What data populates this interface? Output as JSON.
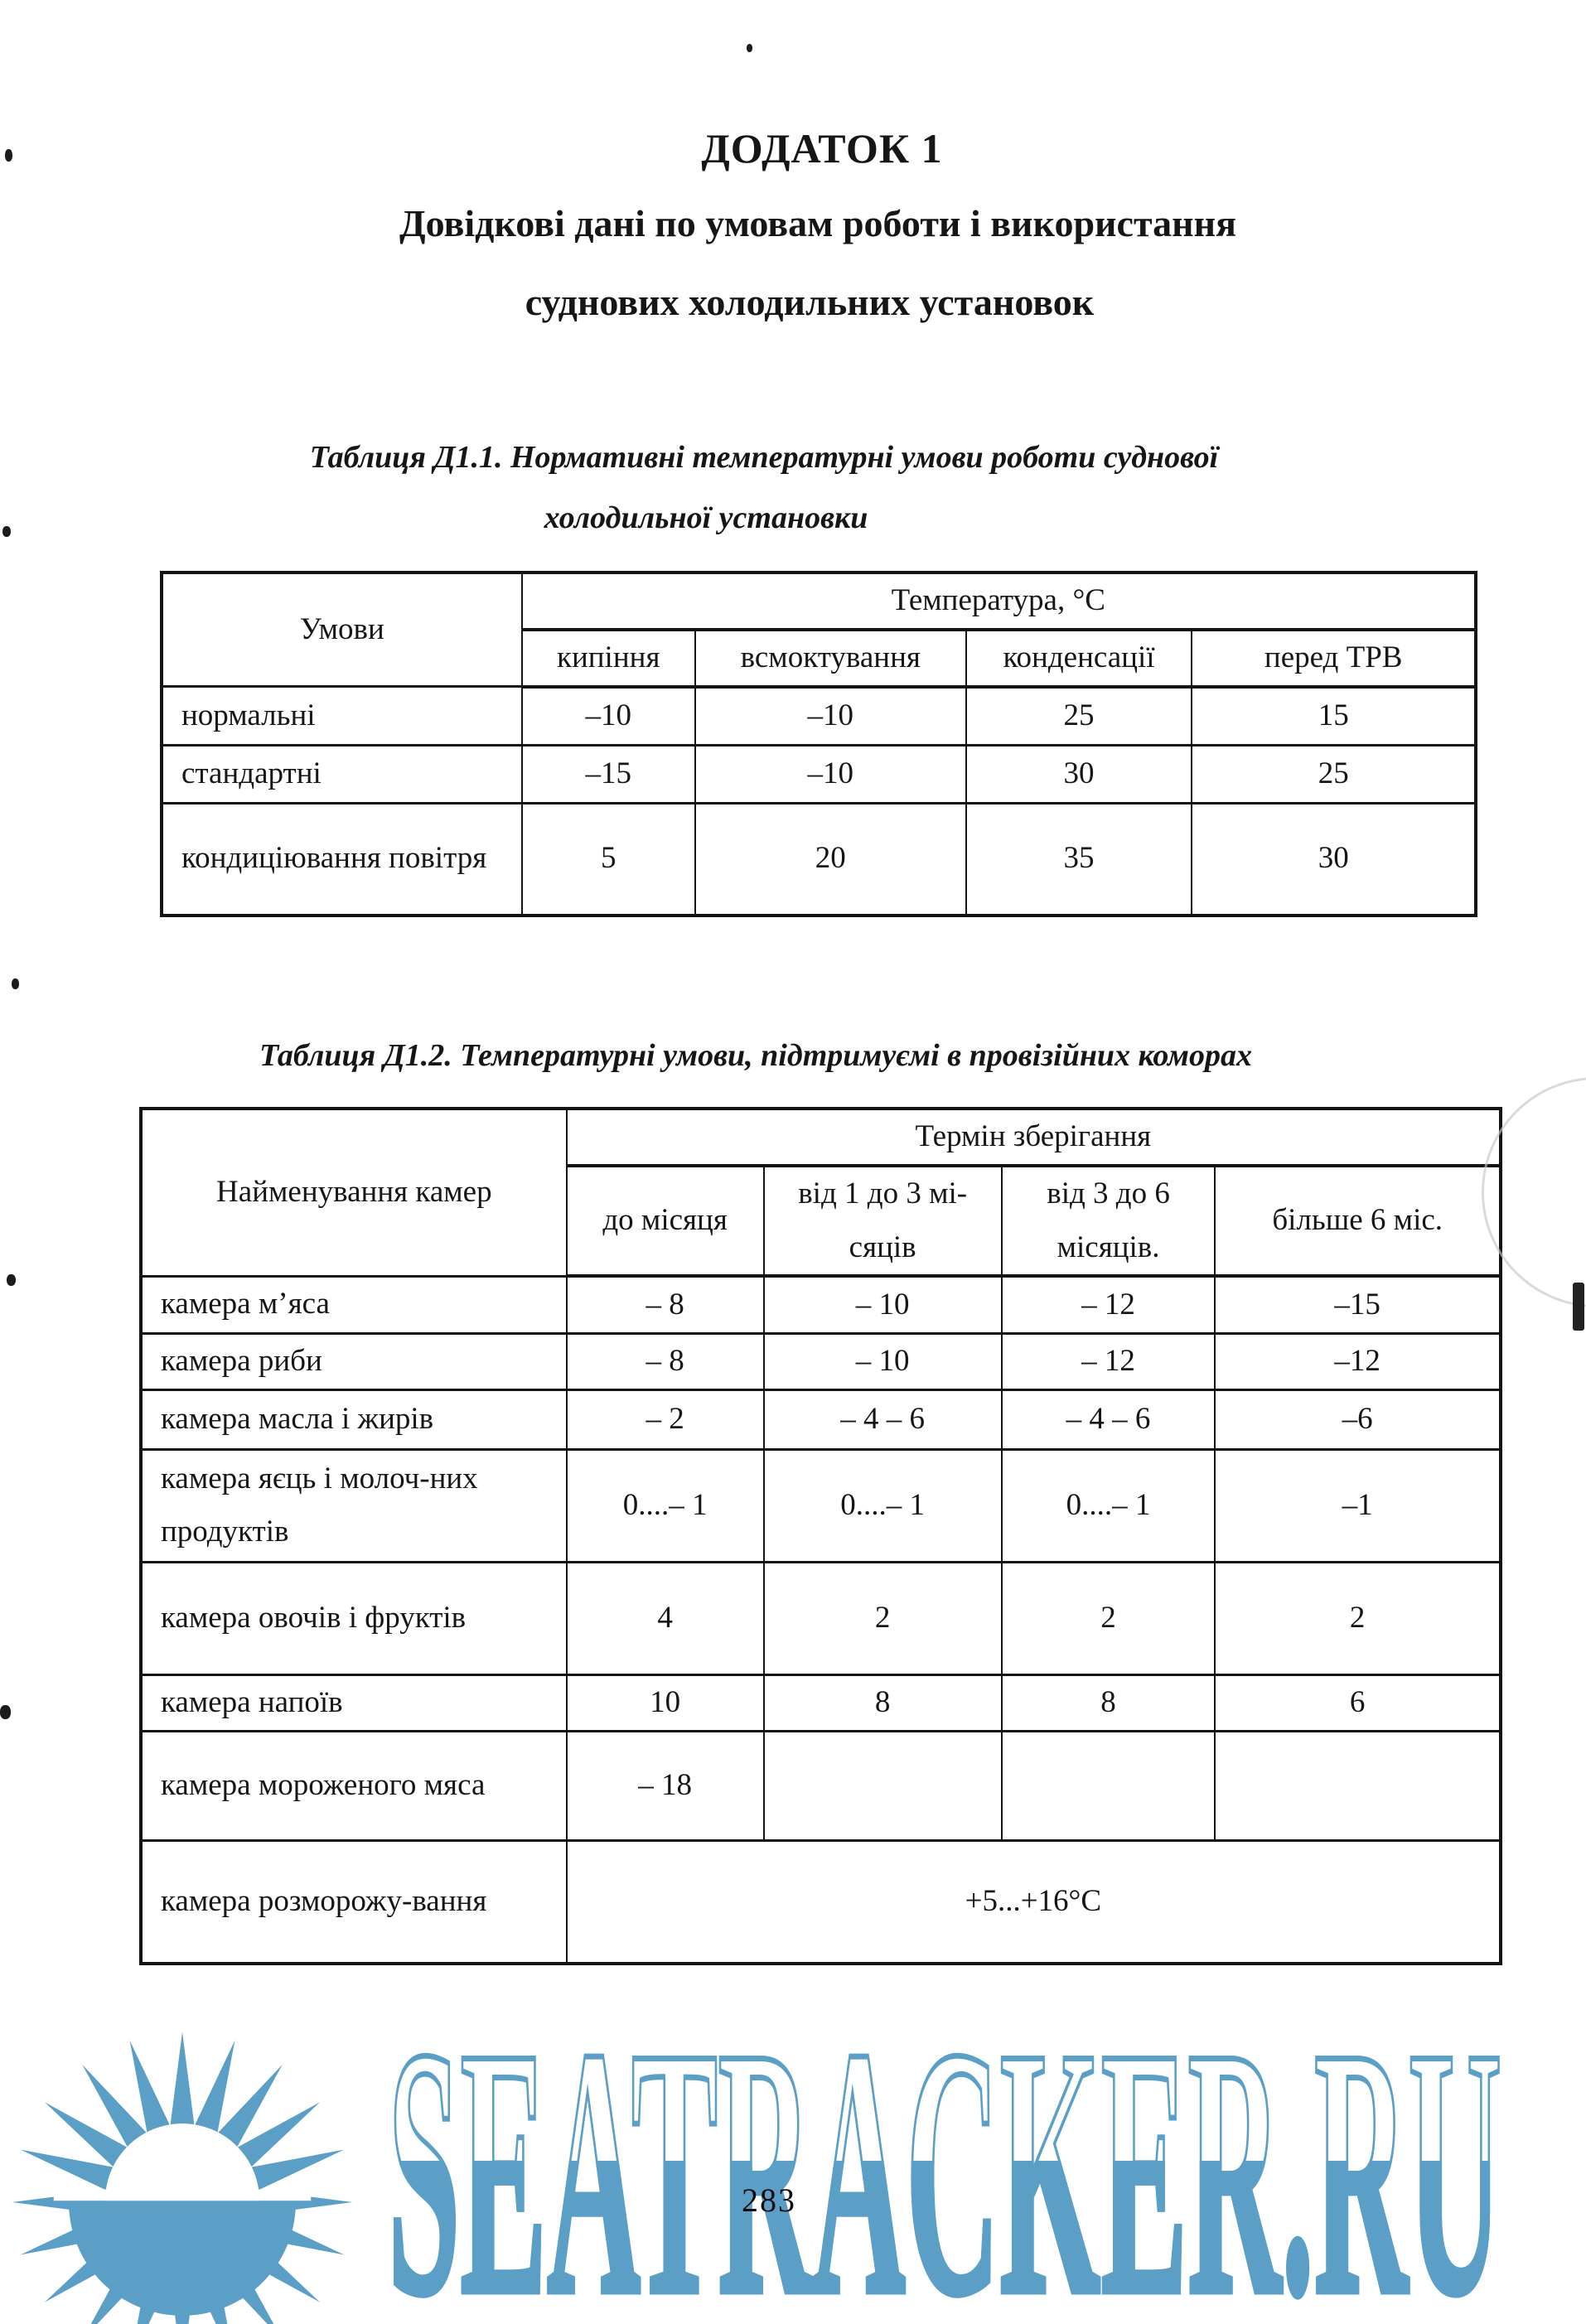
{
  "page": {
    "appendix_title": "ДОДАТОК 1",
    "subtitle_line1": "Довідкові дані по умовам роботи і використання",
    "subtitle_line2": "суднових холодильних установок",
    "page_number": "283"
  },
  "table1": {
    "caption_line1": "Таблиця Д1.1. Нормативні температурні умови роботи суднової",
    "caption_line2": "холодильної установки",
    "header": {
      "conditions": "Умови",
      "temperature_group": "Температура, °С",
      "subcolumns": [
        "кипіння",
        "всмоктування",
        "конденсації",
        "перед ТРВ"
      ]
    },
    "rows": [
      {
        "label": "нормальні",
        "boiling": "–10",
        "suction": "–10",
        "condensation": "25",
        "before_trv": "15"
      },
      {
        "label": "стандартні",
        "boiling": "–15",
        "suction": "–10",
        "condensation": "30",
        "before_trv": "25"
      },
      {
        "label": "кондиціювання повітря",
        "boiling": "5",
        "suction": "20",
        "condensation": "35",
        "before_trv": "30"
      }
    ]
  },
  "table2": {
    "caption": "Таблиця Д1.2. Температурні умови, підтримуємі в провізійних коморах",
    "header": {
      "chambers": "Найменування камер",
      "storage_group": "Термін зберігання",
      "subcolumns": [
        "до місяця",
        "від 1 до 3 мі-сяців",
        "від 3 до 6 місяців.",
        "більше 6 міс."
      ]
    },
    "rows": [
      {
        "label": "камера м’яса",
        "c1": "– 8",
        "c2": "– 10",
        "c3": "– 12",
        "c4": "–15"
      },
      {
        "label": "камера риби",
        "c1": "– 8",
        "c2": "– 10",
        "c3": "– 12",
        "c4": "–12"
      },
      {
        "label": "камера масла і жирів",
        "c1": "– 2",
        "c2": "– 4 – 6",
        "c3": "– 4 – 6",
        "c4": "–6"
      },
      {
        "label": "камера яєць і молоч-них продуктів",
        "c1": "0....– 1",
        "c2": "0....– 1",
        "c3": "0....– 1",
        "c4": "–1"
      },
      {
        "label": "камера овочів і фруктів",
        "c1": "4",
        "c2": "2",
        "c3": "2",
        "c4": "2"
      },
      {
        "label": "камера напоїв",
        "c1": "10",
        "c2": "8",
        "c3": "8",
        "c4": "6"
      },
      {
        "label": "камера мороженого мяса",
        "c1": "– 18",
        "c2": "",
        "c3": "",
        "c4": ""
      }
    ],
    "merged_row": {
      "label": "камера розморожу-вання",
      "value": "+5...+16°С"
    }
  },
  "watermark": {
    "site": "SEATRACKER.RU",
    "color": "#5b9fc7",
    "sun_icon": "sun-over-sea-icon"
  }
}
